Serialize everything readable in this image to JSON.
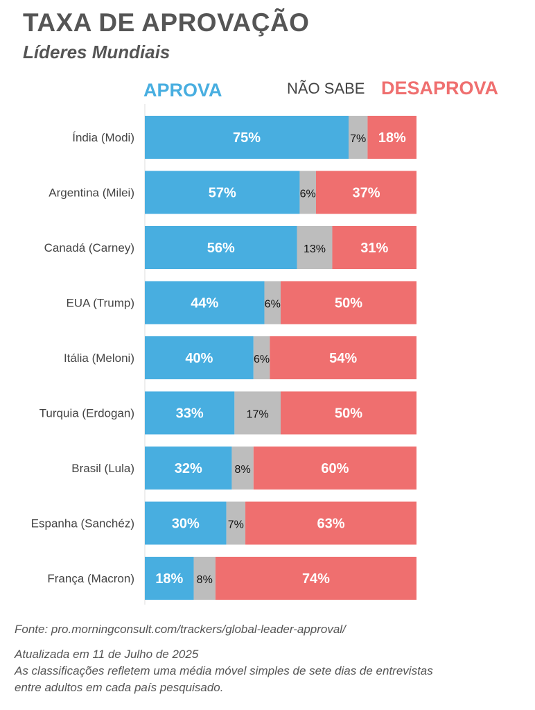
{
  "chart_data": {
    "type": "bar",
    "stacked": true,
    "orientation": "horizontal",
    "title": "TAXA DE APROVAÇÃO",
    "subtitle": "Líderes Mundiais",
    "xlim": [
      0,
      100
    ],
    "grid": false,
    "legend_placement": "top",
    "categories": [
      "Índia (Modi)",
      "Argentina (Milei)",
      "Canadá (Carney)",
      "EUA (Trump)",
      "Itália (Meloni)",
      "Turquia (Erdogan)",
      "Brasil (Lula)",
      "Espanha (Sanchéz)",
      "França (Macron)"
    ],
    "series": [
      {
        "name": "APROVA",
        "color": "#48aee0",
        "label_color": "#ffffff",
        "values": [
          75,
          57,
          56,
          44,
          40,
          33,
          32,
          30,
          18
        ]
      },
      {
        "name": "NÃO SABE",
        "color": "#bdbdbd",
        "label_color": "#111111",
        "values": [
          7,
          6,
          13,
          6,
          6,
          17,
          8,
          7,
          8
        ]
      },
      {
        "name": "DESAPROVA",
        "color": "#ef6f6f",
        "label_color": "#ffffff",
        "values": [
          18,
          37,
          31,
          50,
          54,
          50,
          60,
          63,
          74
        ]
      }
    ],
    "labels": [
      [
        "75%",
        "57%",
        "56%",
        "44%",
        "40%",
        "33%",
        "32%",
        "30%",
        "18%"
      ],
      [
        "7%",
        "6%",
        "13%",
        "6%",
        "6%",
        "17%",
        "8%",
        "7%",
        "8%"
      ],
      [
        "18%",
        "37%",
        "31%",
        "50%",
        "54%",
        "50%",
        "60%",
        "63%",
        "74%"
      ]
    ]
  },
  "footer": {
    "source": "Fonte: pro.morningconsult.com/trackers/global-leader-approval/",
    "updated": "Atualizada em 11 de Julho de 2025",
    "note": "As classificações refletem uma média móvel simples de sete dias de entrevistas entre adultos em cada país pesquisado."
  }
}
